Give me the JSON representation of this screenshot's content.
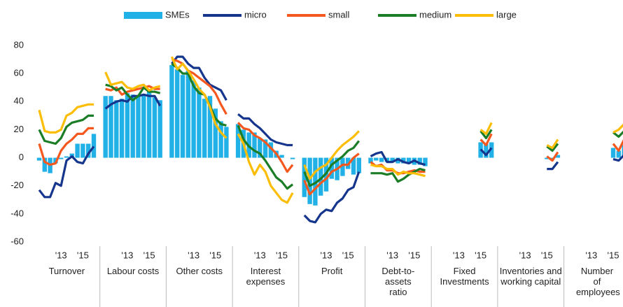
{
  "chart_data": {
    "type": "bar-line-panel",
    "categories": [
      null,
      null,
      null,
      null,
      "'13",
      null,
      null,
      null,
      "'15",
      null,
      null
    ],
    "panels": [
      "Turnover",
      "Labour costs",
      "Other costs",
      "Interest expenses",
      "Profit",
      "Debt-to-assets ratio",
      "Fixed Investments",
      "Inventories and working capital",
      "Number of employees"
    ],
    "ylim": [
      -60,
      80
    ],
    "yticks": [
      -60,
      -40,
      -20,
      0,
      20,
      40,
      60,
      80
    ],
    "series": [
      {
        "name": "SMEs",
        "type": "bar",
        "color": "#21b1e6",
        "values": [
          [
            -2,
            -10,
            -11,
            -4,
            -1,
            1,
            3,
            10,
            10,
            10,
            17
          ],
          [
            44,
            44,
            41,
            42,
            46,
            45,
            44,
            45,
            48,
            43,
            41
          ],
          [
            66,
            63,
            59,
            62,
            55,
            50,
            42,
            44,
            35,
            26,
            22
          ],
          [
            24,
            20,
            18,
            18,
            14,
            13,
            11,
            5,
            2,
            0,
            -1
          ],
          [
            -28,
            -33,
            -34,
            -27,
            -24,
            -15,
            -16,
            -13,
            -8,
            -12,
            -11
          ],
          [
            -4,
            -2,
            -3,
            -3,
            -3,
            -4,
            -4,
            -4,
            -5,
            -5,
            -6
          ],
          [
            null,
            null,
            null,
            null,
            null,
            null,
            null,
            null,
            11,
            10,
            11
          ],
          [
            null,
            null,
            null,
            null,
            null,
            null,
            null,
            null,
            -1,
            -1,
            2
          ],
          [
            null,
            null,
            null,
            null,
            null,
            null,
            null,
            null,
            7,
            5,
            9
          ]
        ]
      },
      {
        "name": "micro",
        "type": "line",
        "color": "#15368c",
        "values": [
          [
            -23,
            -28,
            -28,
            -18,
            -20,
            -2,
            1,
            -3,
            -4,
            3,
            8
          ],
          [
            35,
            38,
            40,
            41,
            40,
            44,
            44,
            45,
            44,
            44,
            37
          ],
          [
            67,
            72,
            72,
            67,
            64,
            64,
            57,
            52,
            50,
            48,
            41
          ],
          [
            31,
            28,
            28,
            24,
            21,
            17,
            13,
            11,
            10,
            9,
            9
          ],
          [
            -41,
            -45,
            -46,
            -40,
            -37,
            -38,
            -32,
            -29,
            -23,
            -21,
            -10
          ],
          [
            1,
            3,
            4,
            -3,
            -3,
            -1,
            -3,
            -4,
            -2,
            -4,
            -5
          ],
          [
            null,
            null,
            null,
            null,
            null,
            null,
            null,
            null,
            6,
            2,
            7
          ],
          [
            null,
            null,
            null,
            null,
            null,
            null,
            null,
            null,
            -8,
            -8,
            -3
          ],
          [
            null,
            null,
            null,
            null,
            null,
            null,
            null,
            null,
            -1,
            -2,
            2
          ]
        ]
      },
      {
        "name": "small",
        "type": "line",
        "color": "#f4581f",
        "values": [
          [
            10,
            -3,
            -5,
            -4,
            5,
            10,
            13,
            17,
            17,
            21,
            21
          ],
          [
            49,
            48,
            50,
            45,
            47,
            48,
            49,
            50,
            51,
            49,
            49
          ],
          [
            70,
            69,
            67,
            62,
            60,
            57,
            54,
            51,
            46,
            38,
            31
          ],
          [
            25,
            21,
            20,
            16,
            14,
            11,
            7,
            3,
            -3,
            -10,
            -5
          ],
          [
            -16,
            -26,
            -22,
            -18,
            -15,
            -10,
            -8,
            -5,
            -5,
            0,
            3
          ],
          [
            -3,
            -6,
            -5,
            -9,
            -9,
            -11,
            -11,
            -10,
            -9,
            -10,
            -10
          ],
          [
            null,
            null,
            null,
            null,
            null,
            null,
            null,
            null,
            13,
            9,
            17
          ],
          [
            null,
            null,
            null,
            null,
            null,
            null,
            null,
            null,
            1,
            -2,
            4
          ],
          [
            null,
            null,
            null,
            null,
            null,
            null,
            null,
            null,
            10,
            5,
            13
          ]
        ]
      },
      {
        "name": "medium",
        "type": "line",
        "color": "#1b7d26",
        "values": [
          [
            20,
            12,
            11,
            10,
            14,
            22,
            25,
            26,
            27,
            30,
            30
          ],
          [
            52,
            51,
            48,
            50,
            45,
            41,
            44,
            50,
            47,
            47,
            46
          ],
          [
            67,
            64,
            60,
            60,
            51,
            46,
            45,
            37,
            28,
            24,
            23
          ],
          [
            23,
            13,
            8,
            5,
            3,
            -2,
            -8,
            -14,
            -17,
            -22,
            -19
          ],
          [
            -10,
            -20,
            -18,
            -15,
            -11,
            -5,
            -2,
            1,
            5,
            7,
            12
          ],
          [
            -11,
            -11,
            -11,
            -12,
            -11,
            -17,
            -15,
            -12,
            -10,
            -8,
            -9
          ],
          [
            null,
            null,
            null,
            null,
            null,
            null,
            null,
            null,
            19,
            14,
            20
          ],
          [
            null,
            null,
            null,
            null,
            null,
            null,
            null,
            null,
            8,
            5,
            10
          ],
          [
            null,
            null,
            null,
            null,
            null,
            null,
            null,
            null,
            18,
            15,
            19
          ]
        ]
      },
      {
        "name": "large",
        "type": "line",
        "color": "#fbbd06",
        "values": [
          [
            34,
            19,
            18,
            18,
            20,
            30,
            32,
            36,
            37,
            38,
            38
          ],
          [
            61,
            52,
            53,
            54,
            50,
            49,
            51,
            52,
            48,
            50,
            51
          ],
          [
            72,
            63,
            67,
            62,
            56,
            49,
            45,
            36,
            24,
            18,
            14
          ],
          [
            17,
            10,
            -3,
            -12,
            -5,
            -10,
            -20,
            -25,
            -30,
            -32,
            -25
          ],
          [
            -5,
            -15,
            -10,
            -7,
            -5,
            0,
            5,
            9,
            12,
            15,
            19
          ],
          [
            -5,
            -6,
            -6,
            -8,
            -8,
            -12,
            -10,
            -11,
            -11,
            -12,
            -13
          ],
          [
            null,
            null,
            null,
            null,
            null,
            null,
            null,
            null,
            20,
            17,
            25
          ],
          [
            null,
            null,
            null,
            null,
            null,
            null,
            null,
            null,
            9,
            7,
            13
          ],
          [
            null,
            null,
            null,
            null,
            null,
            null,
            null,
            null,
            18,
            20,
            24
          ]
        ]
      }
    ]
  }
}
